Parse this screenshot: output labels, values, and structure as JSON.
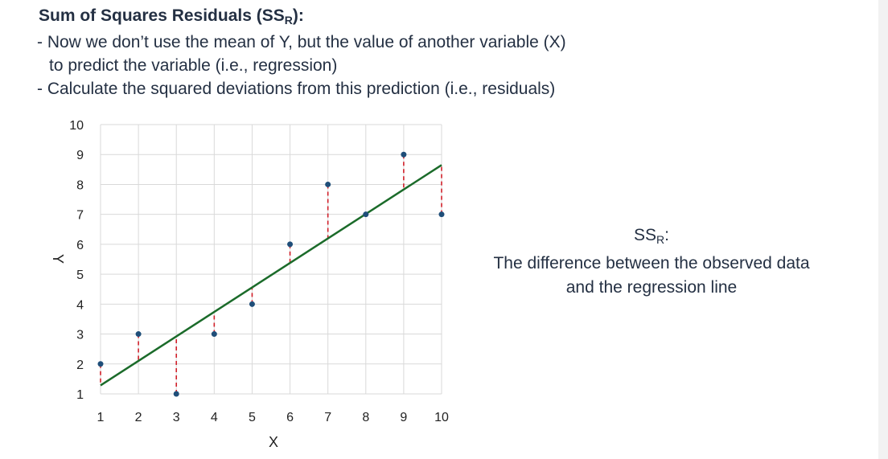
{
  "heading": {
    "prefix": "Sum of Squares Residuals (SS",
    "subscript": "R",
    "suffix": "):"
  },
  "bullets": [
    {
      "line1": "- Now we don’t use the mean of Y, but the value of another variable (X)",
      "line2": "to predict the variable (i.e., regression)"
    },
    {
      "line1": "- Calculate the squared deviations from this prediction (i.e., residuals)"
    }
  ],
  "side_note": {
    "label_prefix": "SS",
    "label_subscript": "R",
    "label_suffix": ":",
    "line1": "The difference between the observed data",
    "line2": "and the regression line"
  },
  "chart_data": {
    "type": "scatter",
    "xlabel": "X",
    "ylabel": "Y",
    "xlim": [
      1,
      10
    ],
    "ylim": [
      1,
      10
    ],
    "xticks": [
      "1",
      "2",
      "3",
      "4",
      "5",
      "6",
      "7",
      "8",
      "9",
      "10"
    ],
    "yticks": [
      "1",
      "2",
      "3",
      "4",
      "5",
      "6",
      "7",
      "8",
      "9",
      "10"
    ],
    "grid": true,
    "points": [
      {
        "x": 1,
        "y": 2
      },
      {
        "x": 2,
        "y": 3
      },
      {
        "x": 3,
        "y": 1
      },
      {
        "x": 4,
        "y": 3
      },
      {
        "x": 5,
        "y": 4
      },
      {
        "x": 6,
        "y": 6
      },
      {
        "x": 7,
        "y": 8
      },
      {
        "x": 8,
        "y": 7
      },
      {
        "x": 9,
        "y": 9
      },
      {
        "x": 10,
        "y": 7
      }
    ],
    "regression_line": {
      "intercept": 0.4667,
      "slope": 0.8182
    },
    "colors": {
      "points": "#1f4e79",
      "regression_line": "#1b6b2a",
      "residuals": "#d0202a",
      "grid": "#d9d9d9"
    }
  }
}
